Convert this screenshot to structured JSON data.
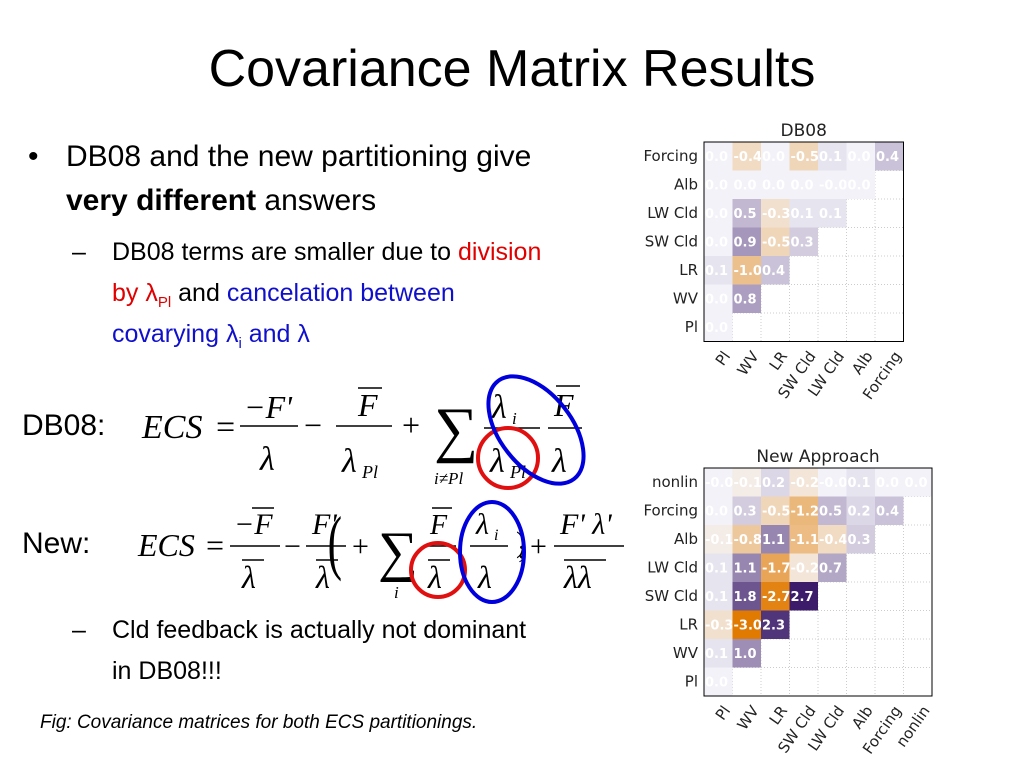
{
  "title": "Covariance Matrix Results",
  "bullet": {
    "text_before": "DB08 and the new partitioning give ",
    "bold": "very different",
    "text_after": " answers"
  },
  "sub1": {
    "text1": "DB08 terms are smaller due to ",
    "red_text": "division by λ",
    "red_sub": "Pl",
    "text2": " and ",
    "blue_text1": "cancelation between covarying λ",
    "blue_sub": "i",
    "blue_text2": " and λ"
  },
  "sub2": {
    "text": "Cld feedback is actually not dominant in DB08!!!"
  },
  "eq1": {
    "label": "DB08:"
  },
  "eq2": {
    "label": "New:"
  },
  "caption": "Fig: Covariance matrices for both ECS partitionings.",
  "colors": {
    "text_red": "#e00000",
    "text_blue": "#1010cc",
    "circle_red": "#e01010",
    "circle_blue": "#0000dd"
  },
  "chart_data": [
    {
      "type": "heatmap",
      "title": "DB08",
      "rows": [
        "Forcing",
        "Alb",
        "LW Cld",
        "SW Cld",
        "LR",
        "WV",
        "Pl"
      ],
      "cols": [
        "Pl",
        "WV",
        "LR",
        "SW Cld",
        "LW Cld",
        "Alb",
        "Forcing"
      ],
      "values": [
        [
          0.0,
          -0.4,
          0.0,
          -0.5,
          0.1,
          0.0,
          0.4
        ],
        [
          0.0,
          0.0,
          0.0,
          0.0,
          -0.0,
          0.0,
          null
        ],
        [
          0.0,
          0.5,
          -0.3,
          0.1,
          0.1,
          null,
          null
        ],
        [
          0.0,
          0.9,
          -0.5,
          0.3,
          null,
          null,
          null
        ],
        [
          0.1,
          -1.0,
          0.4,
          null,
          null,
          null,
          null
        ],
        [
          0.0,
          0.8,
          null,
          null,
          null,
          null,
          null
        ],
        [
          0.0,
          null,
          null,
          null,
          null,
          null,
          null
        ]
      ],
      "labels": [
        [
          "0.0",
          "-0.4",
          "0.0",
          "-0.5",
          "0.1",
          "0.0",
          "0.4"
        ],
        [
          "0.0",
          "0.0",
          "0.0",
          "0.0",
          "-0.0",
          "0.0",
          null
        ],
        [
          "0.0",
          "0.5",
          "-0.3",
          "0.1",
          "0.1",
          null,
          null
        ],
        [
          "0.0",
          "0.9",
          "-0.5",
          "0.3",
          null,
          null,
          null
        ],
        [
          "0.1",
          "-1.0",
          "0.4",
          null,
          null,
          null,
          null
        ],
        [
          "0.0",
          "0.8",
          null,
          null,
          null,
          null,
          null
        ],
        [
          "0.0",
          null,
          null,
          null,
          null,
          null,
          null
        ]
      ],
      "colorscale": {
        "min": -3.0,
        "max": 3.0,
        "negative": "#e07a00",
        "positive": "#2d0a5e"
      }
    },
    {
      "type": "heatmap",
      "title": "New Approach",
      "rows": [
        "nonlin",
        "Forcing",
        "Alb",
        "LW Cld",
        "SW Cld",
        "LR",
        "WV",
        "Pl"
      ],
      "cols": [
        "Pl",
        "WV",
        "LR",
        "SW Cld",
        "LW Cld",
        "Alb",
        "Forcing",
        "nonlin"
      ],
      "values": [
        [
          -0.0,
          -0.1,
          0.2,
          -0.2,
          -0.0,
          0.1,
          0.0,
          0.0
        ],
        [
          0.0,
          0.3,
          -0.5,
          -1.2,
          0.5,
          0.2,
          0.4,
          null
        ],
        [
          -0.1,
          -0.8,
          1.1,
          -1.1,
          -0.4,
          0.3,
          null,
          null
        ],
        [
          0.1,
          1.1,
          -1.7,
          -0.2,
          0.7,
          null,
          null,
          null
        ],
        [
          0.1,
          1.8,
          -2.7,
          2.7,
          null,
          null,
          null,
          null
        ],
        [
          -0.3,
          -3.0,
          2.3,
          null,
          null,
          null,
          null,
          null
        ],
        [
          0.1,
          1.0,
          null,
          null,
          null,
          null,
          null,
          null
        ],
        [
          0.0,
          null,
          null,
          null,
          null,
          null,
          null,
          null
        ]
      ],
      "labels": [
        [
          "-0.0",
          "-0.1",
          "0.2",
          "-0.2",
          "-0.0",
          "0.1",
          "0.0",
          "0.0"
        ],
        [
          "0.0",
          "0.3",
          "-0.5",
          "-1.2",
          "0.5",
          "0.2",
          "0.4",
          null
        ],
        [
          "-0.1",
          "-0.8",
          "1.1",
          "-1.1",
          "-0.4",
          "0.3",
          null,
          null
        ],
        [
          "0.1",
          "1.1",
          "-1.7",
          "-0.2",
          "0.7",
          null,
          null,
          null
        ],
        [
          "0.1",
          "1.8",
          "-2.7",
          "2.7",
          null,
          null,
          null,
          null
        ],
        [
          "-0.3",
          "-3.0",
          "2.3",
          null,
          null,
          null,
          null,
          null
        ],
        [
          "0.1",
          "1.0",
          null,
          null,
          null,
          null,
          null,
          null
        ],
        [
          "0.0",
          null,
          null,
          null,
          null,
          null,
          null,
          null
        ]
      ],
      "colorscale": {
        "min": -3.0,
        "max": 3.0,
        "negative": "#e07a00",
        "positive": "#2d0a5e"
      }
    }
  ]
}
